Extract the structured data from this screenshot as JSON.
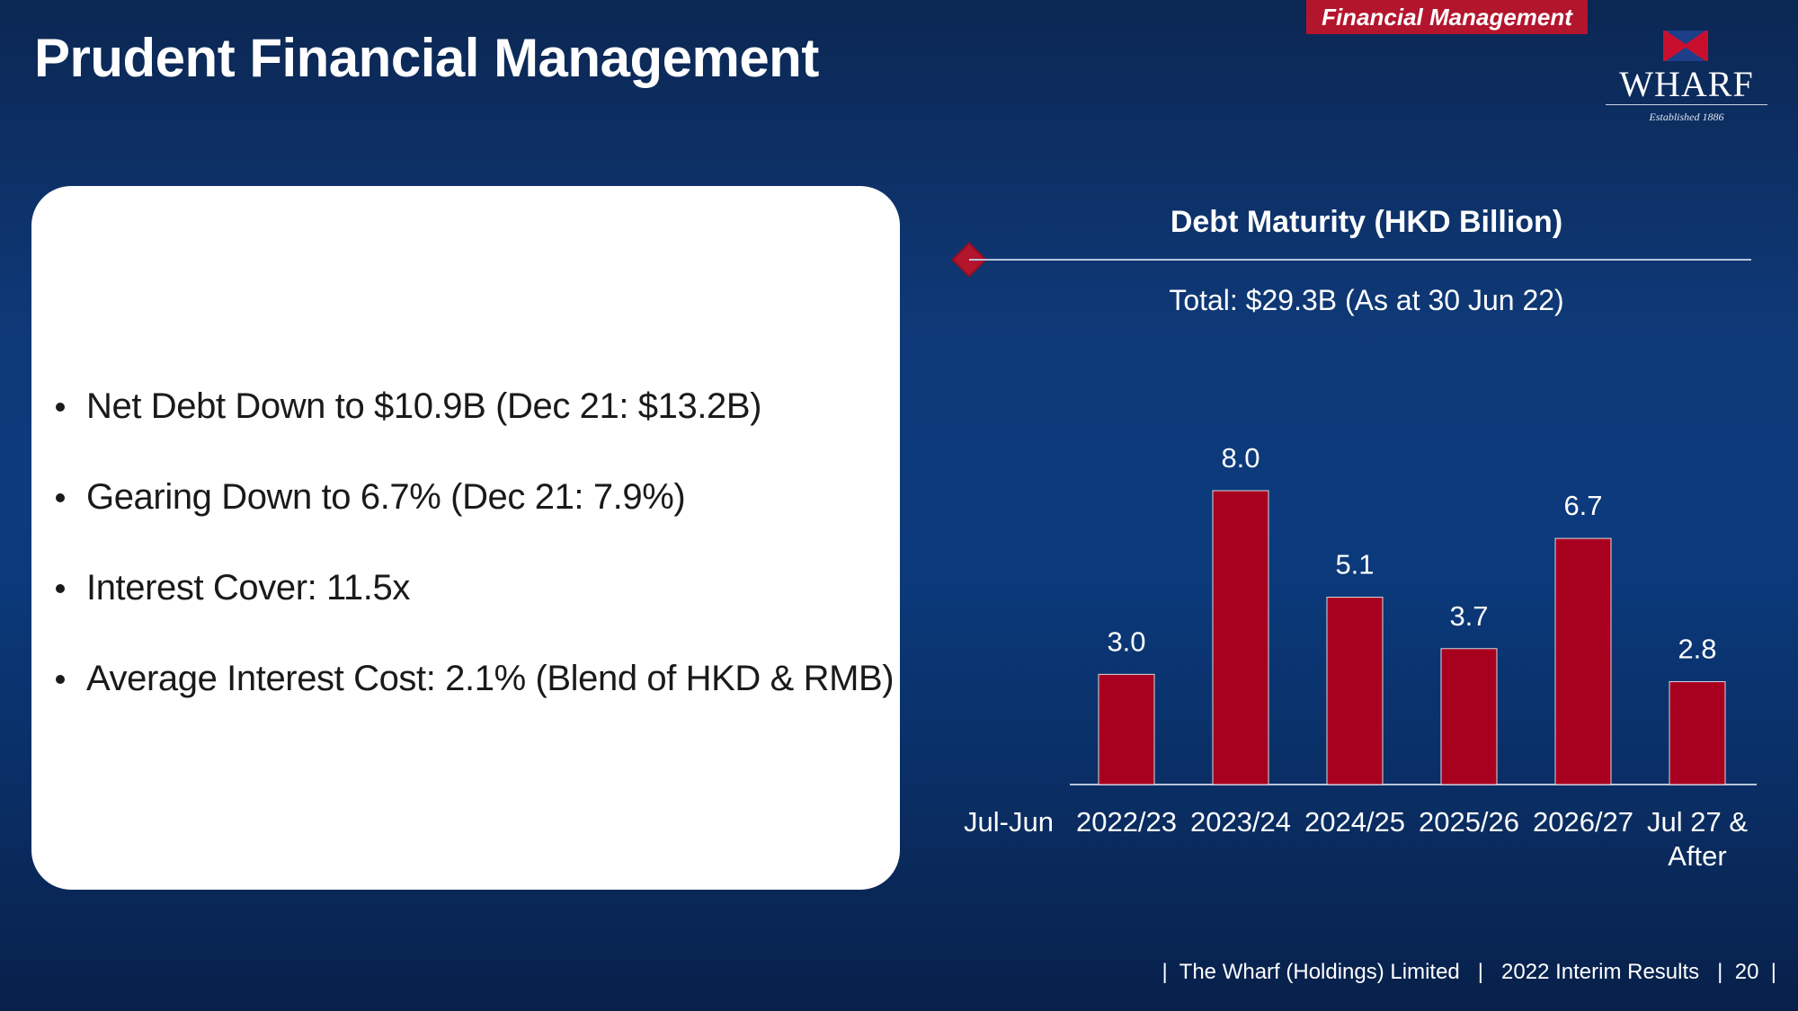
{
  "section_tag": "Financial Management",
  "title": "Prudent Financial Management",
  "logo": {
    "brand": "WHARF",
    "established": "Established 1886"
  },
  "bullets": [
    "Net Debt Down to $10.9B (Dec 21: $13.2B)",
    "Gearing Down to 6.7% (Dec 21: 7.9%)",
    "Interest Cover: 11.5x",
    "Average Interest Cost: 2.1% (Blend of HKD & RMB)"
  ],
  "chart_data": {
    "type": "bar",
    "title": "Debt Maturity (HKD Billion)",
    "subtitle": "Total: $29.3B (As at 30 Jun 22)",
    "xlabel": "Jul-Jun",
    "ylabel": "",
    "categories": [
      [
        "2022/23"
      ],
      [
        "2023/24"
      ],
      [
        "2024/25"
      ],
      [
        "2025/26"
      ],
      [
        "2026/27"
      ],
      [
        "Jul 27 &",
        "After"
      ]
    ],
    "values": [
      3.0,
      8.0,
      5.1,
      3.7,
      6.7,
      2.8
    ],
    "value_labels": [
      "3.0",
      "8.0",
      "5.1",
      "3.7",
      "6.7",
      "2.8"
    ],
    "ylim": [
      0,
      8.0
    ],
    "grid": false,
    "bar_color": "#a8001f"
  },
  "footer": {
    "company": "The Wharf (Holdings) Limited",
    "report": "2022 Interim Results",
    "page": "20"
  }
}
